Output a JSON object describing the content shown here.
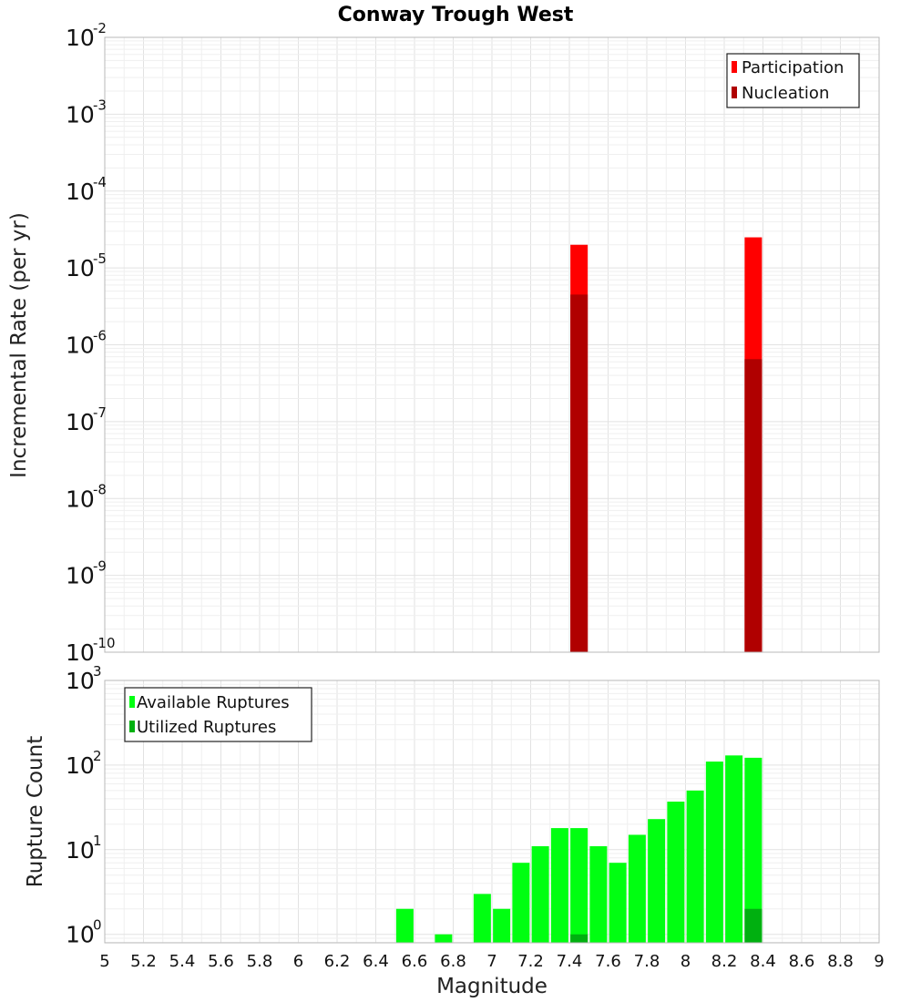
{
  "chart_data": [
    {
      "type": "bar",
      "title": "Conway Trough West",
      "xlabel": "",
      "ylabel": "Incremental Rate (per yr)",
      "yscale": "log",
      "ylim_exponent": [
        -10,
        -2
      ],
      "xlim": [
        5,
        9
      ],
      "legend_position": "top-right",
      "series": [
        {
          "name": "Participation",
          "color": "#ff0000",
          "points": [
            {
              "x": 7.45,
              "y": 2e-05
            },
            {
              "x": 8.35,
              "y": 2.5e-05
            }
          ]
        },
        {
          "name": "Nucleation",
          "color": "#b00000",
          "points": [
            {
              "x": 7.45,
              "y": 4.5e-06
            },
            {
              "x": 8.35,
              "y": 6.5e-07
            }
          ]
        }
      ]
    },
    {
      "type": "bar",
      "title": "",
      "xlabel": "Magnitude",
      "ylabel": "Rupture Count",
      "yscale": "log",
      "ylim_exponent": [
        -0.1,
        3
      ],
      "xlim": [
        5,
        9
      ],
      "legend_position": "top-left",
      "x_ticks": [
        "5",
        "5.2",
        "5.4",
        "5.6",
        "5.8",
        "6",
        "6.2",
        "6.4",
        "6.6",
        "6.8",
        "7",
        "7.2",
        "7.4",
        "7.6",
        "7.8",
        "8",
        "8.2",
        "8.4",
        "8.6",
        "8.8",
        "9"
      ],
      "series": [
        {
          "name": "Available Ruptures",
          "color": "#00ff11",
          "points": [
            {
              "x": 6.55,
              "y": 2
            },
            {
              "x": 6.75,
              "y": 1
            },
            {
              "x": 6.95,
              "y": 3
            },
            {
              "x": 7.05,
              "y": 2
            },
            {
              "x": 7.15,
              "y": 7
            },
            {
              "x": 7.25,
              "y": 11
            },
            {
              "x": 7.35,
              "y": 18
            },
            {
              "x": 7.45,
              "y": 18
            },
            {
              "x": 7.55,
              "y": 11
            },
            {
              "x": 7.65,
              "y": 7
            },
            {
              "x": 7.75,
              "y": 15
            },
            {
              "x": 7.85,
              "y": 23
            },
            {
              "x": 7.95,
              "y": 37
            },
            {
              "x": 8.05,
              "y": 50
            },
            {
              "x": 8.15,
              "y": 110
            },
            {
              "x": 8.25,
              "y": 130
            },
            {
              "x": 8.35,
              "y": 122
            }
          ]
        },
        {
          "name": "Utilized Ruptures",
          "color": "#00b010",
          "points": [
            {
              "x": 7.45,
              "y": 1
            },
            {
              "x": 8.35,
              "y": 2
            }
          ]
        }
      ]
    }
  ]
}
